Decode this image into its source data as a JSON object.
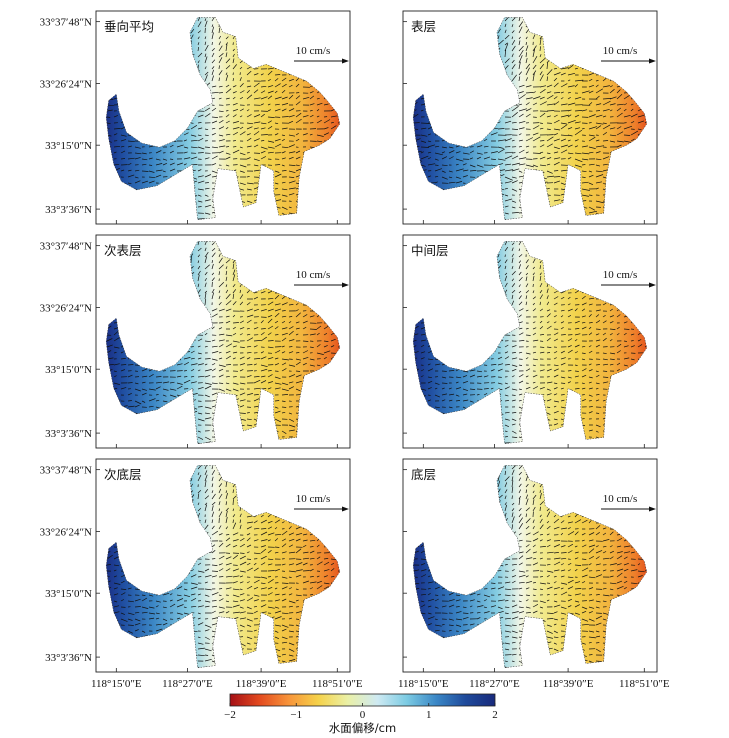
{
  "chart_data": {
    "type": "vector_field_map",
    "panels": [
      {
        "title": "垂向平均"
      },
      {
        "title": "表层"
      },
      {
        "title": "次表层"
      },
      {
        "title": "中间层"
      },
      {
        "title": "次底层"
      },
      {
        "title": "底层"
      }
    ],
    "x_ticks": [
      "118°15′0″E",
      "118°27′0″E",
      "118°39′0″E",
      "118°51′0″E"
    ],
    "y_ticks": [
      "33°37′48″N",
      "33°26′24″N",
      "33°15′0″N",
      "33°3′36″N"
    ],
    "scale_label": "10 cm/s",
    "colorbar": {
      "label": "水面偏移/cm",
      "ticks": [
        -2,
        -1,
        0,
        1,
        2
      ],
      "min": -2,
      "max": 2,
      "colors": [
        "#a50f15",
        "#e34a1f",
        "#f7943a",
        "#f5d24a",
        "#eaf0a6",
        "#cfeaf2",
        "#7ccbe3",
        "#3a87c6",
        "#1f4a9b",
        "#182a7c"
      ]
    }
  }
}
